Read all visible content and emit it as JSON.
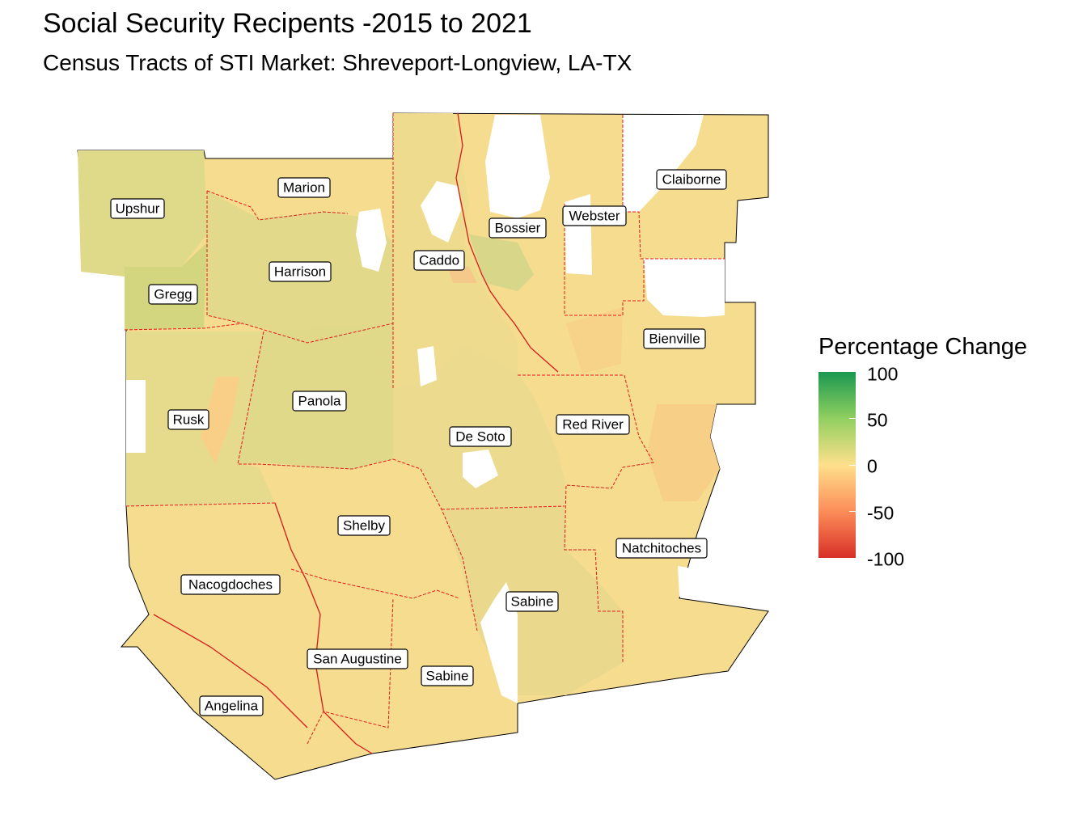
{
  "title": "Social Security Recipents -2015 to 2021",
  "subtitle": "Census Tracts of STI Market: Shreveport-Longview, LA-TX",
  "legend": {
    "title": "Percentage Change",
    "ticks": [
      "100",
      "50",
      "0",
      "-50",
      "-100"
    ],
    "colors": [
      "#1a9850",
      "#91cf60",
      "#fee08b",
      "#fc8d59",
      "#d73027"
    ]
  },
  "counties": {
    "upshur": "Upshur",
    "marion": "Marion",
    "gregg": "Gregg",
    "harrison": "Harrison",
    "caddo": "Caddo",
    "bossier": "Bossier",
    "webster": "Webster",
    "claiborne": "Claiborne",
    "bienville": "Bienville",
    "rusk": "Rusk",
    "panola": "Panola",
    "desoto": "De Soto",
    "redriver": "Red River",
    "shelby": "Shelby",
    "natchitoches": "Natchitoches",
    "nacogdoches": "Nacogdoches",
    "sabine_la": "Sabine",
    "sanaugustine": "San Augustine",
    "sabine_tx": "Sabine",
    "angelina": "Angelina"
  }
}
